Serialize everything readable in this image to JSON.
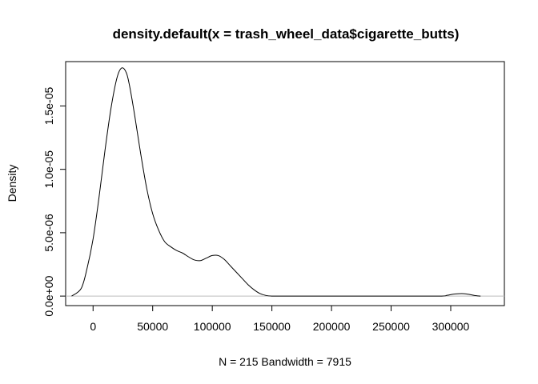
{
  "chart_data": {
    "type": "line",
    "title": "density.default(x = trash_wheel_data$cigarette_butts)",
    "xlabel": "N = 215   Bandwidth = 7915",
    "ylabel": "Density",
    "xlim": [
      -23000,
      345000
    ],
    "ylim": [
      -7.5e-07,
      1.85e-05
    ],
    "xticks": [
      0,
      50000,
      100000,
      150000,
      200000,
      250000,
      300000
    ],
    "xtick_labels": [
      "0",
      "50000",
      "100000",
      "150000",
      "200000",
      "250000",
      "300000"
    ],
    "yticks": [
      0,
      5e-06,
      1e-05,
      1.5e-05
    ],
    "ytick_labels": [
      "0.0e+00",
      "5.0e-06",
      "1.0e-05",
      "1.5e-05"
    ],
    "baseline": 0,
    "grid": false,
    "series": [
      {
        "color": "#000000",
        "x": [
          -18000,
          -10000,
          -5000,
          0,
          5000,
          10000,
          15000,
          20000,
          24000,
          28000,
          31000,
          35000,
          40000,
          45000,
          50000,
          55000,
          60000,
          65000,
          70000,
          75000,
          80000,
          85000,
          90000,
          95000,
          100000,
          105000,
          110000,
          115000,
          120000,
          125000,
          130000,
          135000,
          140000,
          145000,
          150000,
          155000,
          160000,
          170000,
          180000,
          200000,
          250000,
          290000,
          297000,
          302000,
          307000,
          311000,
          315000,
          320000,
          325000
        ],
        "y": [
          0,
          6e-07,
          2.2e-06,
          4.5e-06,
          7.8e-06,
          1.15e-05,
          1.48e-05,
          1.72e-05,
          1.8e-05,
          1.76e-05,
          1.64e-05,
          1.42e-05,
          1.12e-05,
          8.5e-06,
          6.5e-06,
          5.2e-06,
          4.3e-06,
          3.9e-06,
          3.6e-06,
          3.4e-06,
          3.1e-06,
          2.85e-06,
          2.8e-06,
          3e-06,
          3.2e-06,
          3.2e-06,
          2.9e-06,
          2.4e-06,
          1.9e-06,
          1.4e-06,
          9e-07,
          5e-07,
          2e-07,
          5e-08,
          0,
          0,
          0,
          0,
          0,
          0,
          0,
          0,
          6e-08,
          1.5e-07,
          1.9e-07,
          1.9e-07,
          1.4e-07,
          5e-08,
          0
        ]
      }
    ]
  }
}
